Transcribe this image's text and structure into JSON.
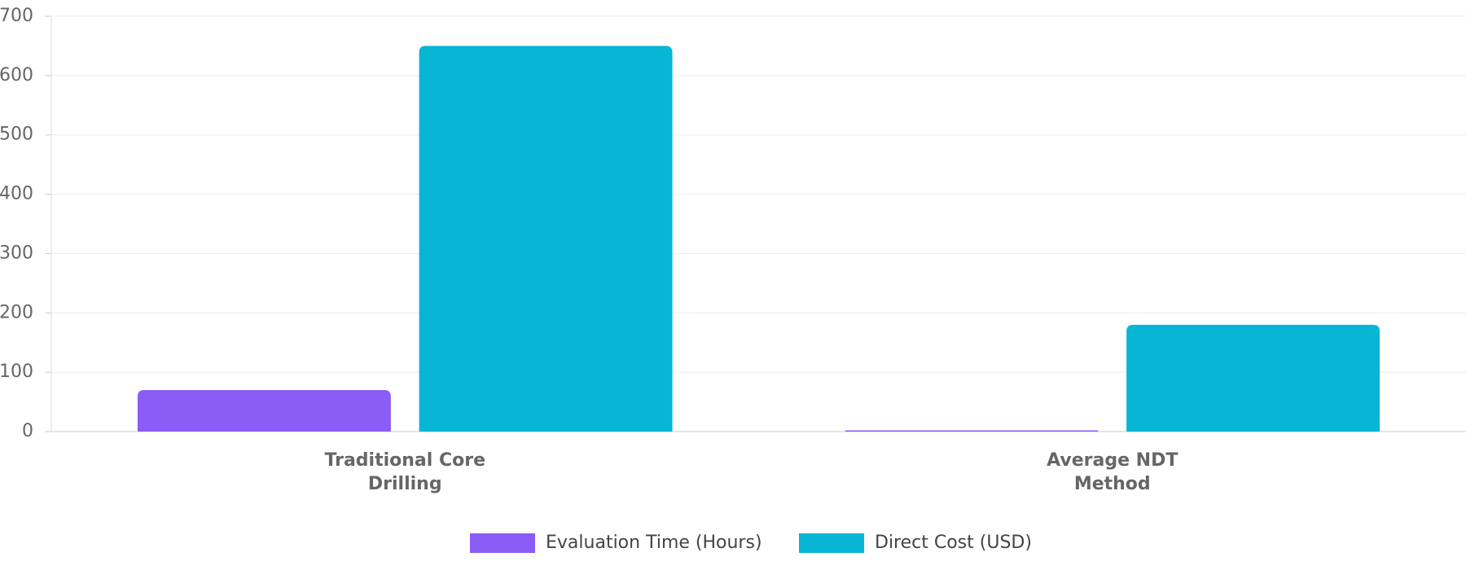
{
  "chart_data": {
    "type": "bar",
    "categories": [
      "Traditional Core Drilling",
      "Average NDT Method"
    ],
    "series": [
      {
        "name": "Evaluation Time (Hours)",
        "color": "#8b5cf6",
        "values": [
          70,
          2
        ]
      },
      {
        "name": "Direct Cost (USD)",
        "color": "#06b6d4",
        "values": [
          650,
          180
        ]
      }
    ],
    "ylim": [
      0,
      700
    ],
    "yticks": [
      0,
      100,
      200,
      300,
      400,
      500,
      600,
      700
    ],
    "grid": true
  }
}
